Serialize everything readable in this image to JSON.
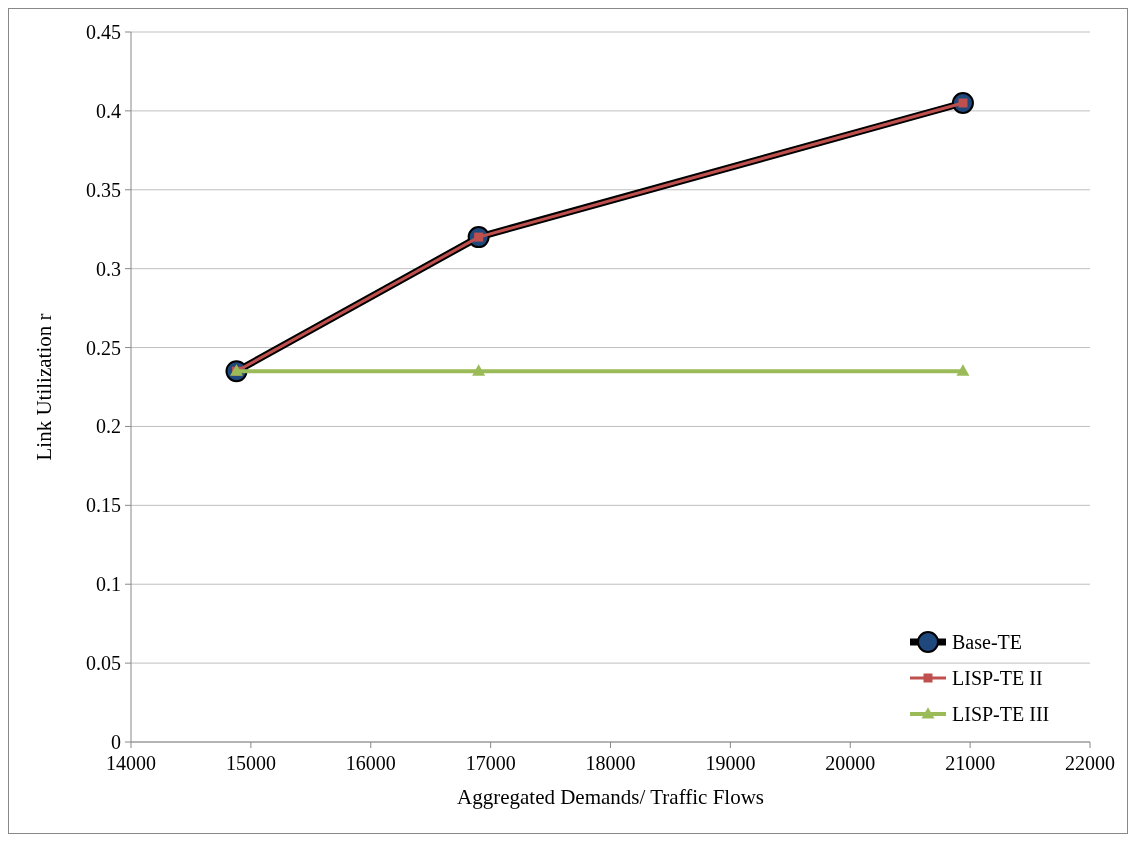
{
  "chart_data": {
    "type": "line",
    "xlabel": "Aggregated Demands/ Traffic Flows",
    "ylabel": "Link Utilization r",
    "xlim": [
      14000,
      22000
    ],
    "xticks": [
      14000,
      15000,
      16000,
      17000,
      18000,
      19000,
      20000,
      21000,
      22000
    ],
    "ylim": [
      0,
      0.45
    ],
    "yticks": [
      0,
      0.05,
      0.1,
      0.15,
      0.2,
      0.25,
      0.3,
      0.35,
      0.4,
      0.45
    ],
    "grid": "y",
    "legend": "bottom right",
    "series": [
      {
        "name": "Base-TE",
        "color": "#000000",
        "marker": "circle",
        "x": [
          14880,
          16900,
          20940
        ],
        "values": [
          0.235,
          0.32,
          0.405
        ]
      },
      {
        "name": "LISP-TE II",
        "color": "#c0504d",
        "marker": "square",
        "x": [
          14880,
          16900,
          20940
        ],
        "values": [
          0.235,
          0.32,
          0.405
        ]
      },
      {
        "name": "LISP-TE III",
        "color": "#9bbb59",
        "marker": "triangle",
        "x": [
          14880,
          16900,
          20940
        ],
        "values": [
          0.235,
          0.235,
          0.235
        ]
      }
    ]
  }
}
